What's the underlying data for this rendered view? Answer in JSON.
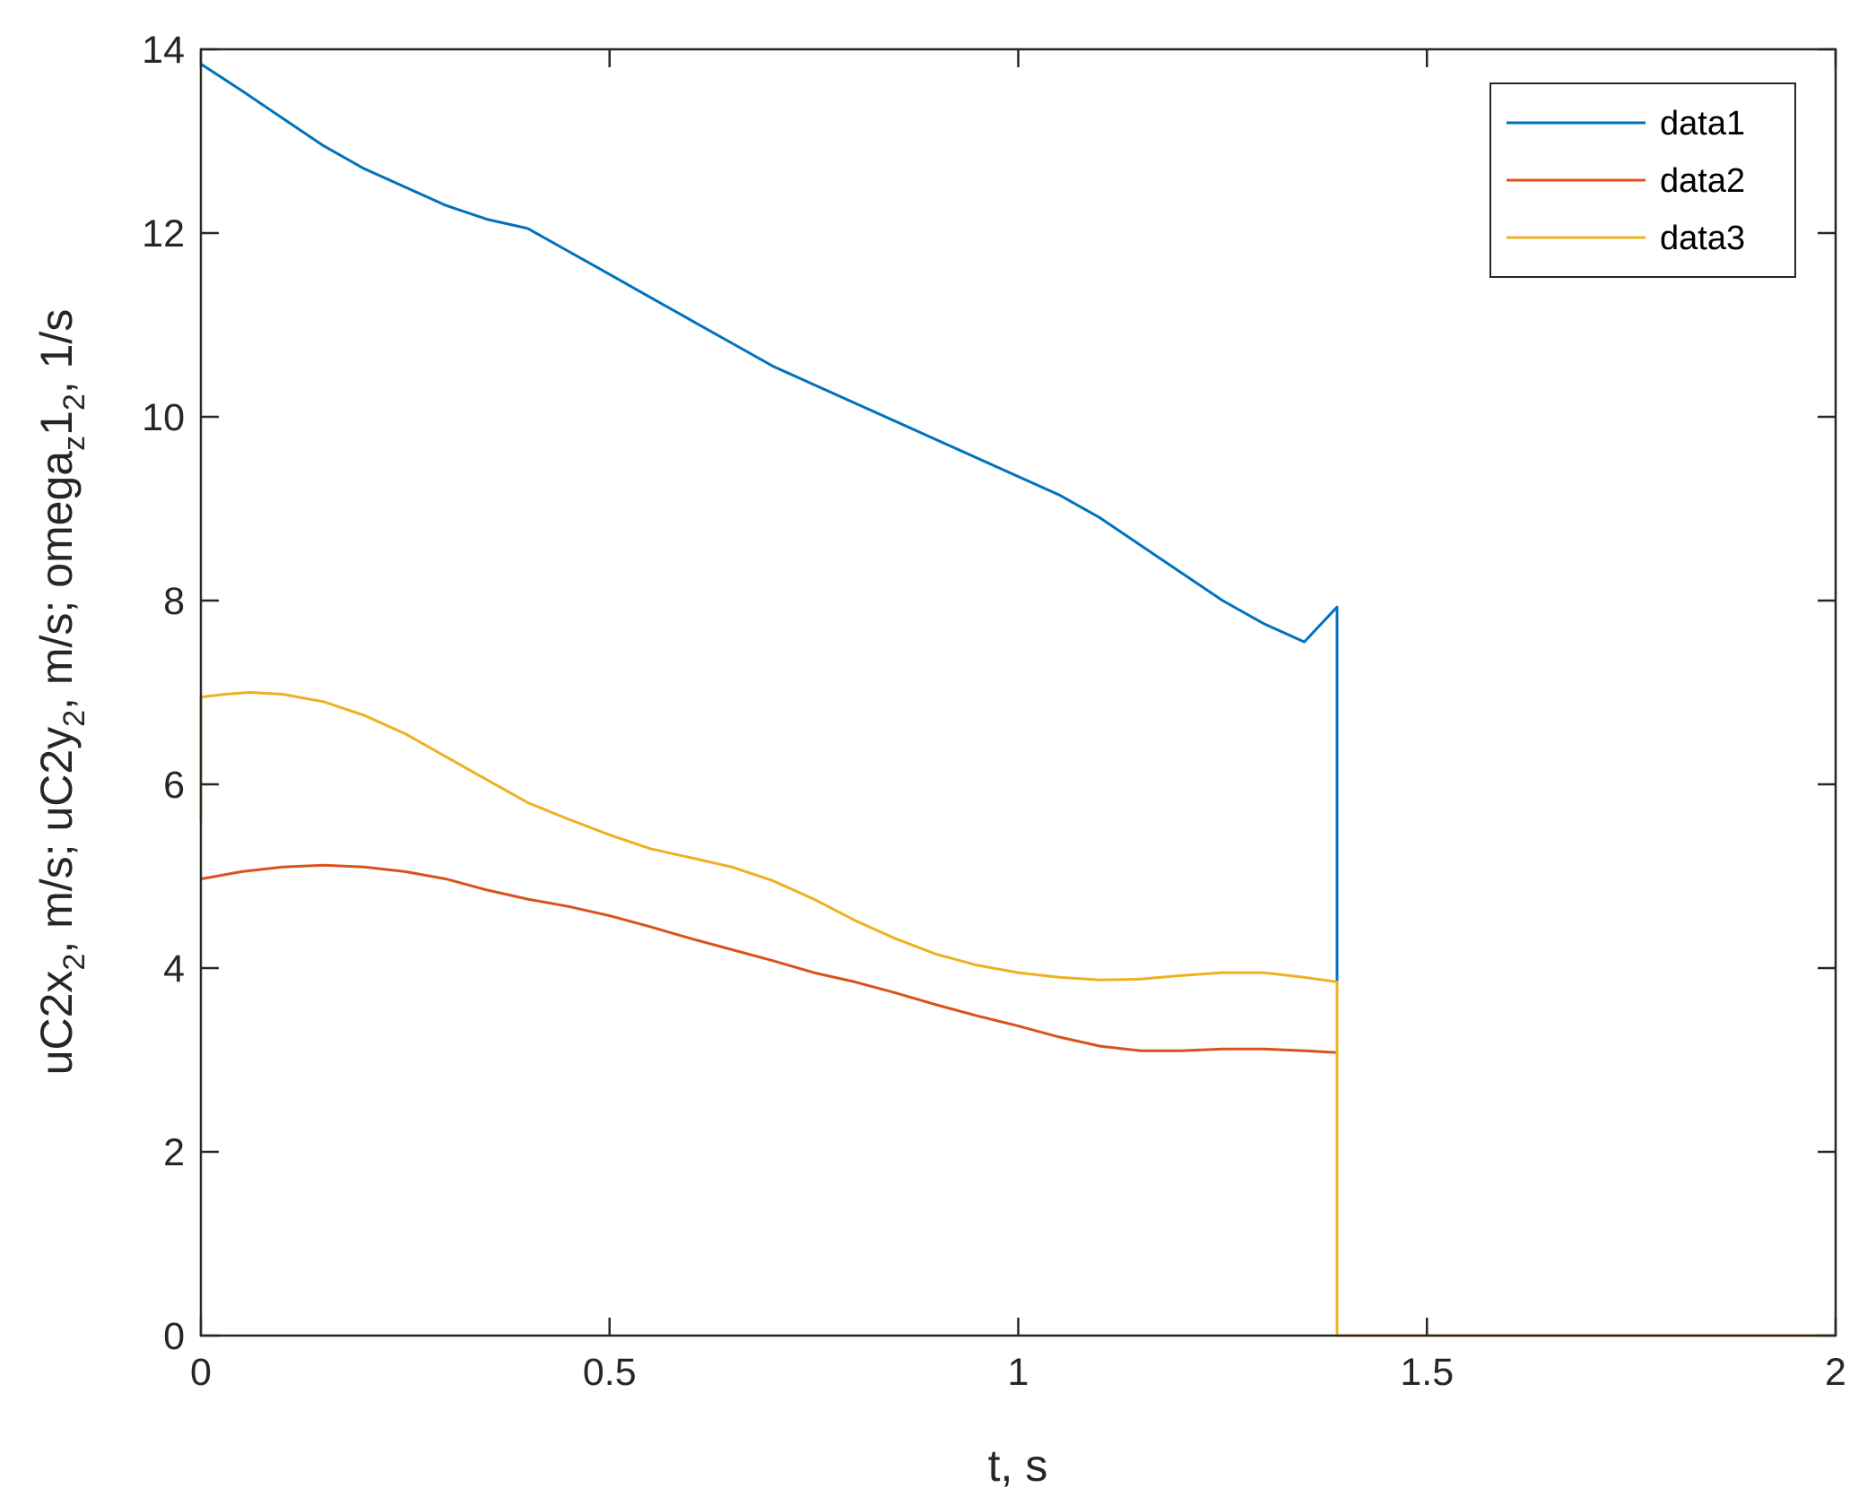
{
  "chart_data": {
    "type": "line",
    "xlabel": "t, s",
    "ylabel": "uC2x_2, m/s; uC2y_2, m/s; omega_z1_2, 1/s",
    "xlim": [
      0,
      2
    ],
    "ylim": [
      0,
      14
    ],
    "xticks": [
      0,
      0.5,
      1,
      1.5,
      2
    ],
    "yticks": [
      0,
      2,
      4,
      6,
      8,
      10,
      12,
      14
    ],
    "xtick_labels": [
      "0",
      "0.5",
      "1",
      "1.5",
      "2"
    ],
    "ytick_labels": [
      "0",
      "2",
      "4",
      "6",
      "8",
      "10",
      "12",
      "14"
    ],
    "grid": false,
    "legend_position": "top-right",
    "series": [
      {
        "name": "data1",
        "color": "#0072BD",
        "points": [
          [
            0,
            13.84
          ],
          [
            0.05,
            13.55
          ],
          [
            0.1,
            13.25
          ],
          [
            0.15,
            12.95
          ],
          [
            0.2,
            12.7
          ],
          [
            0.25,
            12.5
          ],
          [
            0.3,
            12.3
          ],
          [
            0.35,
            12.15
          ],
          [
            0.4,
            12.05
          ],
          [
            0.45,
            11.8
          ],
          [
            0.5,
            11.55
          ],
          [
            0.55,
            11.3
          ],
          [
            0.6,
            11.05
          ],
          [
            0.65,
            10.8
          ],
          [
            0.7,
            10.55
          ],
          [
            0.75,
            10.35
          ],
          [
            0.8,
            10.15
          ],
          [
            0.85,
            9.95
          ],
          [
            0.9,
            9.75
          ],
          [
            0.95,
            9.55
          ],
          [
            1.0,
            9.35
          ],
          [
            1.05,
            9.15
          ],
          [
            1.1,
            8.9
          ],
          [
            1.15,
            8.6
          ],
          [
            1.2,
            8.3
          ],
          [
            1.25,
            8.0
          ],
          [
            1.3,
            7.75
          ],
          [
            1.35,
            7.55
          ],
          [
            1.39,
            7.93
          ],
          [
            1.39,
            3.9
          ],
          [
            1.39,
            0
          ],
          [
            2,
            0
          ]
        ]
      },
      {
        "name": "data2",
        "color": "#D95319",
        "points": [
          [
            0,
            4.97
          ],
          [
            0.05,
            5.05
          ],
          [
            0.1,
            5.1
          ],
          [
            0.15,
            5.12
          ],
          [
            0.2,
            5.1
          ],
          [
            0.25,
            5.05
          ],
          [
            0.3,
            4.97
          ],
          [
            0.35,
            4.85
          ],
          [
            0.4,
            4.75
          ],
          [
            0.45,
            4.67
          ],
          [
            0.5,
            4.57
          ],
          [
            0.55,
            4.45
          ],
          [
            0.6,
            4.32
          ],
          [
            0.65,
            4.2
          ],
          [
            0.7,
            4.08
          ],
          [
            0.75,
            3.95
          ],
          [
            0.8,
            3.85
          ],
          [
            0.85,
            3.73
          ],
          [
            0.9,
            3.6
          ],
          [
            0.95,
            3.48
          ],
          [
            1.0,
            3.37
          ],
          [
            1.05,
            3.25
          ],
          [
            1.1,
            3.15
          ],
          [
            1.15,
            3.1
          ],
          [
            1.2,
            3.1
          ],
          [
            1.25,
            3.12
          ],
          [
            1.3,
            3.12
          ],
          [
            1.35,
            3.1
          ],
          [
            1.39,
            3.08
          ],
          [
            1.39,
            1.6
          ],
          [
            1.39,
            0
          ],
          [
            2,
            0
          ]
        ]
      },
      {
        "name": "data3",
        "color": "#EDB120",
        "points": [
          [
            0,
            5.6
          ],
          [
            0,
            6.95
          ],
          [
            0.03,
            6.98
          ],
          [
            0.06,
            7.0
          ],
          [
            0.1,
            6.98
          ],
          [
            0.15,
            6.9
          ],
          [
            0.2,
            6.75
          ],
          [
            0.25,
            6.55
          ],
          [
            0.3,
            6.3
          ],
          [
            0.35,
            6.05
          ],
          [
            0.4,
            5.8
          ],
          [
            0.45,
            5.62
          ],
          [
            0.5,
            5.45
          ],
          [
            0.55,
            5.3
          ],
          [
            0.6,
            5.2
          ],
          [
            0.65,
            5.1
          ],
          [
            0.7,
            4.95
          ],
          [
            0.75,
            4.75
          ],
          [
            0.8,
            4.52
          ],
          [
            0.85,
            4.32
          ],
          [
            0.9,
            4.15
          ],
          [
            0.95,
            4.03
          ],
          [
            1.0,
            3.95
          ],
          [
            1.05,
            3.9
          ],
          [
            1.1,
            3.87
          ],
          [
            1.15,
            3.88
          ],
          [
            1.2,
            3.92
          ],
          [
            1.25,
            3.95
          ],
          [
            1.3,
            3.95
          ],
          [
            1.35,
            3.9
          ],
          [
            1.39,
            3.85
          ],
          [
            1.39,
            0
          ],
          [
            2,
            0
          ]
        ]
      }
    ]
  }
}
